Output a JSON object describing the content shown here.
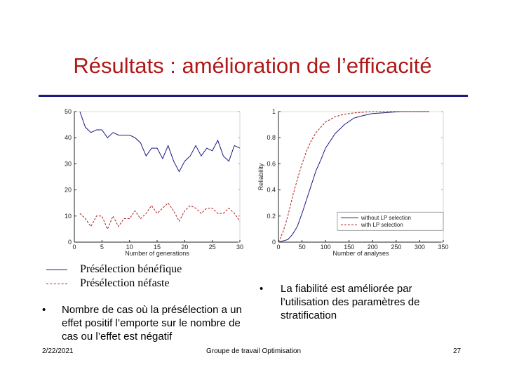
{
  "slide": {
    "title": "Résultats : amélioration de l’efficacité",
    "legend": {
      "items": [
        {
          "label": "Présélection bénéfique",
          "color": "#1a1a80",
          "style": "solid"
        },
        {
          "label": "Présélection néfaste",
          "color": "#b01818",
          "style": "dashed"
        }
      ]
    },
    "bullet_left": "Nombre de cas où la présélection a un effet positif l’emporte sur le nombre de cas ou l’effet est négatif",
    "bullet_right": "La fiabilité est améliorée par l’utilisation des paramètres de stratification",
    "bullet_glyph": "•",
    "footer": {
      "date": "2/22/2021",
      "center": "Groupe de travail Optimisation",
      "page": "27"
    }
  },
  "chart_data": [
    {
      "type": "line",
      "xlabel": "Number of generations",
      "ylabel": "",
      "xlim": [
        0,
        30
      ],
      "ylim": [
        0,
        50
      ],
      "xticks": [
        0,
        5,
        10,
        15,
        20,
        25,
        30
      ],
      "yticks": [
        0,
        10,
        20,
        30,
        40,
        50
      ],
      "x": [
        1,
        2,
        3,
        4,
        5,
        6,
        7,
        8,
        9,
        10,
        11,
        12,
        13,
        14,
        15,
        16,
        17,
        18,
        19,
        20,
        21,
        22,
        23,
        24,
        25,
        26,
        27,
        28,
        29,
        30
      ],
      "series": [
        {
          "color": "#1a1a80",
          "style": "solid",
          "values": [
            50,
            44,
            42,
            43,
            43,
            40,
            42,
            41,
            41,
            41,
            40,
            38,
            33,
            36,
            36,
            32,
            37,
            31,
            27,
            31,
            33,
            37,
            33,
            36,
            35,
            39,
            33,
            31,
            37,
            36
          ]
        },
        {
          "color": "#b01818",
          "style": "dashed",
          "values": [
            11,
            9,
            6,
            10,
            10,
            5,
            10,
            6,
            9,
            9,
            12,
            9,
            11,
            14,
            11,
            13,
            15,
            12,
            8,
            12,
            14,
            13,
            11,
            13,
            13,
            11,
            11,
            13,
            11,
            8
          ]
        }
      ]
    },
    {
      "type": "line",
      "xlabel": "Number of analyses",
      "ylabel": "Reliability",
      "xlim": [
        0,
        350
      ],
      "ylim": [
        0,
        1
      ],
      "xticks": [
        0,
        50,
        100,
        150,
        200,
        250,
        300,
        350
      ],
      "yticks": [
        0,
        0.2,
        0.4,
        0.6,
        0.8,
        1
      ],
      "tick_labels_y": [
        "0",
        "0.2",
        "0.4",
        "0.6",
        "0.8",
        "1"
      ],
      "series": [
        {
          "name": "without LP selection",
          "color": "#1a1a80",
          "style": "solid",
          "x": [
            0,
            20,
            30,
            40,
            50,
            60,
            70,
            80,
            90,
            100,
            120,
            140,
            160,
            180,
            200,
            220,
            240,
            260,
            280,
            300,
            320
          ],
          "y": [
            0,
            0.02,
            0.06,
            0.12,
            0.22,
            0.33,
            0.44,
            0.55,
            0.63,
            0.72,
            0.83,
            0.9,
            0.95,
            0.97,
            0.985,
            0.99,
            0.995,
            1,
            1,
            1,
            1
          ]
        },
        {
          "name": "with LP selection",
          "color": "#b01818",
          "style": "dashed",
          "x": [
            0,
            10,
            20,
            30,
            40,
            50,
            60,
            70,
            80,
            90,
            100,
            120,
            140,
            160,
            180,
            200,
            220,
            240,
            260,
            280,
            300,
            320
          ],
          "y": [
            0,
            0.08,
            0.2,
            0.35,
            0.48,
            0.6,
            0.7,
            0.78,
            0.84,
            0.88,
            0.92,
            0.96,
            0.98,
            0.99,
            0.995,
            1,
            1,
            1,
            1,
            1,
            1,
            1
          ]
        }
      ],
      "legend_position": "bottom-right"
    }
  ]
}
